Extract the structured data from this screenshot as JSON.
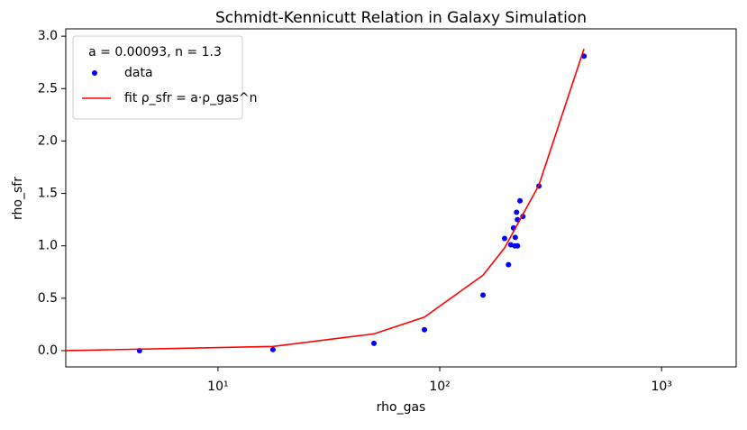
{
  "chart_data": {
    "type": "scatter",
    "title": "Schmidt-Kennicutt Relation in Galaxy Simulation",
    "x_label": "rho_gas",
    "y_label": "rho_sfr",
    "xscale": "log",
    "xlim": [
      2.06,
      2170
    ],
    "ylim": [
      -0.155,
      3.07
    ],
    "xticks": [
      {
        "value": 10,
        "label": "10¹"
      },
      {
        "value": 100,
        "label": "10²"
      },
      {
        "value": 1000,
        "label": "10³"
      }
    ],
    "yticks": [
      {
        "value": 0,
        "label": "0.0"
      },
      0.5,
      {
        "value": 1,
        "label": "1.0"
      },
      1.5,
      {
        "value": 2,
        "label": "2.0"
      },
      2.5,
      {
        "value": 3,
        "label": "3.0"
      }
    ],
    "legend": "upper left",
    "legend_title": "a = 0.00093, n = 1.3",
    "series": [
      {
        "name": "data",
        "type": "scatter",
        "color": "#0000ff",
        "x": [
          4.43,
          17.7,
          50.5,
          85.3,
          156.7,
          196,
          204,
          209,
          215,
          219,
          218,
          224,
          222,
          224,
          230,
          237,
          280,
          447
        ],
        "values": [
          0.0,
          0.01,
          0.07,
          0.2,
          0.53,
          1.07,
          0.82,
          1.01,
          1.17,
          1.08,
          1.0,
          1.0,
          1.32,
          1.25,
          1.43,
          1.28,
          1.57,
          2.81
        ]
      },
      {
        "name": "fit ρ_sfr = a·ρ_gas^n",
        "type": "line",
        "color": "#ff0000",
        "x": [
          2.06,
          17.7,
          50.5,
          85.3,
          156.7,
          196,
          280,
          447
        ],
        "values": [
          0.0,
          0.04,
          0.16,
          0.32,
          0.72,
          0.98,
          1.58,
          2.88
        ]
      }
    ]
  }
}
